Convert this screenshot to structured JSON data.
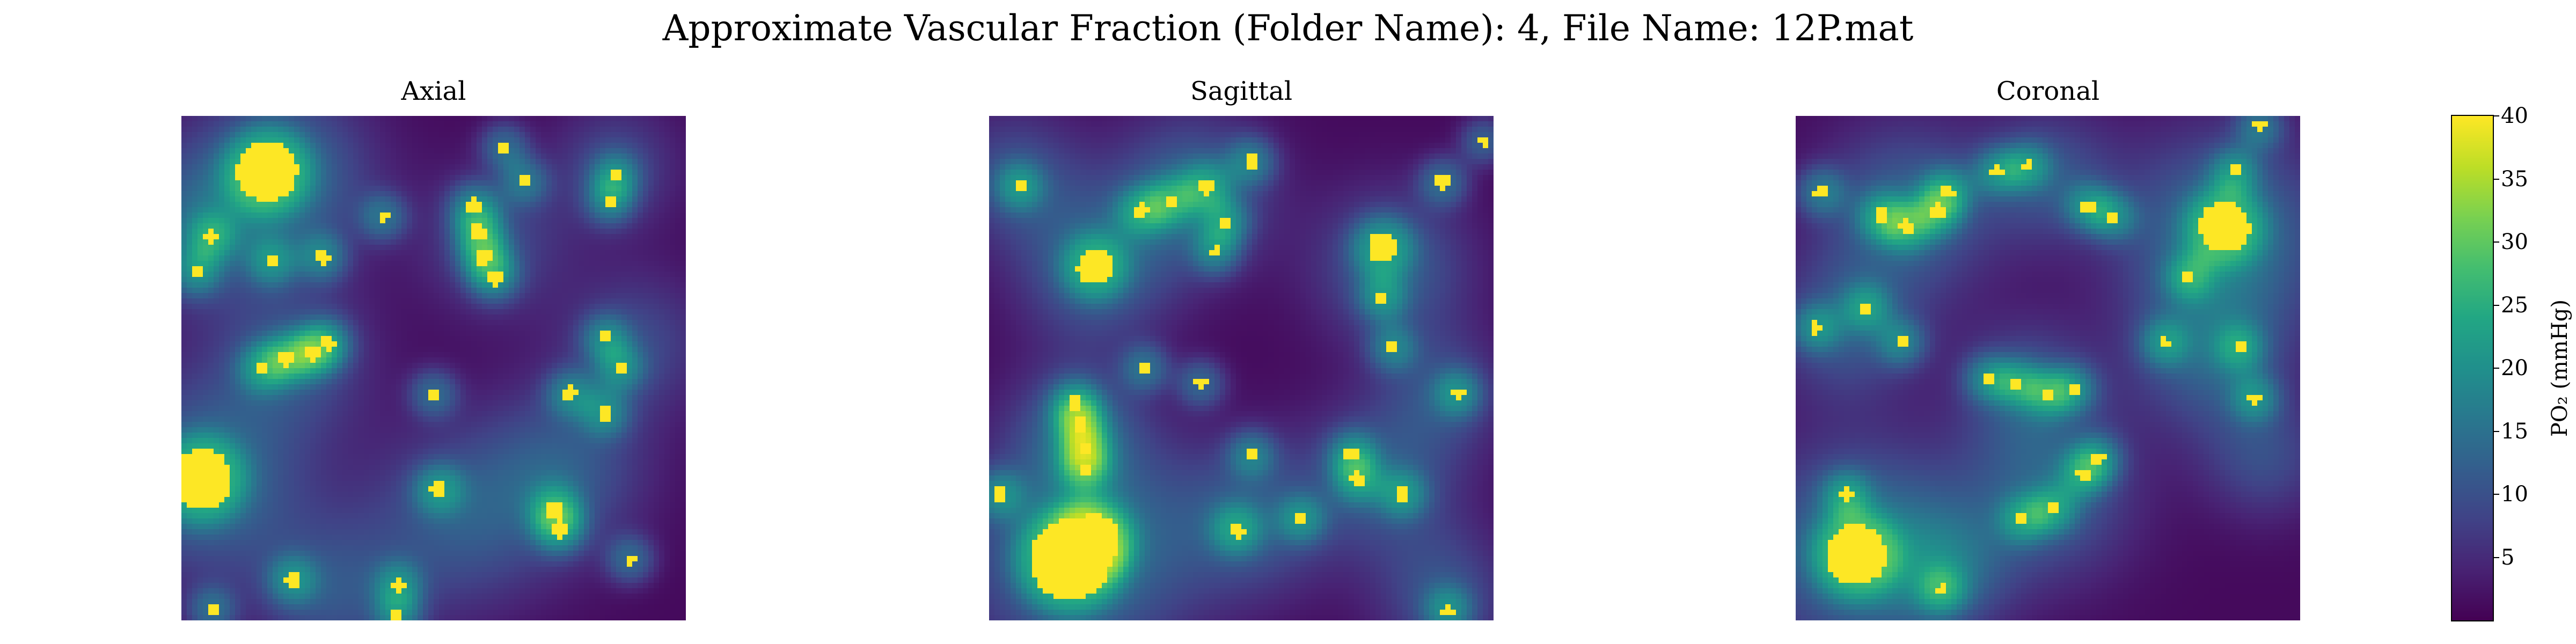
{
  "figure": {
    "suptitle": "Approximate Vascular Fraction (Folder Name): 4, File Name: 12P.mat"
  },
  "chart_data": {
    "type": "heatmap",
    "colormap": "viridis",
    "value_range": [
      0,
      40
    ],
    "panels": [
      {
        "title": "Axial",
        "vessels": [
          {
            "x": 0.17,
            "y": 0.11,
            "r": 0.06,
            "level": 48
          },
          {
            "x": 0.04,
            "y": 0.72,
            "r": 0.06,
            "level": 48
          },
          {
            "x": 0.58,
            "y": 0.18,
            "r": 0.016,
            "level": 46
          },
          {
            "x": 0.59,
            "y": 0.23,
            "r": 0.016,
            "level": 46
          },
          {
            "x": 0.6,
            "y": 0.28,
            "r": 0.016,
            "level": 46
          },
          {
            "x": 0.62,
            "y": 0.32,
            "r": 0.016,
            "level": 46
          },
          {
            "x": 0.16,
            "y": 0.5,
            "r": 0.015,
            "level": 44
          },
          {
            "x": 0.21,
            "y": 0.48,
            "r": 0.015,
            "level": 44
          },
          {
            "x": 0.26,
            "y": 0.47,
            "r": 0.015,
            "level": 44
          },
          {
            "x": 0.29,
            "y": 0.45,
            "r": 0.015,
            "level": 44
          },
          {
            "x": 0.18,
            "y": 0.29,
            "r": 0.013,
            "level": 44
          },
          {
            "x": 0.28,
            "y": 0.28,
            "r": 0.013,
            "level": 44
          },
          {
            "x": 0.4,
            "y": 0.2,
            "r": 0.012,
            "level": 44
          },
          {
            "x": 0.74,
            "y": 0.78,
            "r": 0.018,
            "level": 46
          },
          {
            "x": 0.75,
            "y": 0.82,
            "r": 0.018,
            "level": 46
          },
          {
            "x": 0.51,
            "y": 0.74,
            "r": 0.016,
            "level": 46
          },
          {
            "x": 0.77,
            "y": 0.55,
            "r": 0.013,
            "level": 44
          },
          {
            "x": 0.84,
            "y": 0.59,
            "r": 0.013,
            "level": 44
          },
          {
            "x": 0.84,
            "y": 0.44,
            "r": 0.012,
            "level": 44
          },
          {
            "x": 0.87,
            "y": 0.5,
            "r": 0.012,
            "level": 44
          },
          {
            "x": 0.86,
            "y": 0.12,
            "r": 0.012,
            "level": 44
          },
          {
            "x": 0.85,
            "y": 0.17,
            "r": 0.012,
            "level": 44
          },
          {
            "x": 0.64,
            "y": 0.06,
            "r": 0.012,
            "level": 44
          },
          {
            "x": 0.68,
            "y": 0.13,
            "r": 0.012,
            "level": 44
          },
          {
            "x": 0.22,
            "y": 0.92,
            "r": 0.014,
            "level": 46
          },
          {
            "x": 0.43,
            "y": 0.93,
            "r": 0.013,
            "level": 44
          },
          {
            "x": 0.06,
            "y": 0.24,
            "r": 0.013,
            "level": 44
          },
          {
            "x": 0.03,
            "y": 0.31,
            "r": 0.012,
            "level": 44
          },
          {
            "x": 0.5,
            "y": 0.55,
            "r": 0.012,
            "level": 44
          },
          {
            "x": 0.89,
            "y": 0.88,
            "r": 0.012,
            "level": 44
          },
          {
            "x": 0.06,
            "y": 0.98,
            "r": 0.012,
            "level": 44
          },
          {
            "x": 0.43,
            "y": 0.99,
            "r": 0.012,
            "level": 44
          }
        ],
        "diffuse": [
          {
            "x": 0.2,
            "y": 0.12,
            "r": 0.17,
            "level": 14
          },
          {
            "x": 0.05,
            "y": 0.72,
            "r": 0.19,
            "level": 14
          },
          {
            "x": 0.02,
            "y": 0.22,
            "r": 0.15,
            "level": 10
          },
          {
            "x": 0.55,
            "y": 0.8,
            "r": 0.18,
            "level": 10
          },
          {
            "x": 0.76,
            "y": 0.7,
            "r": 0.16,
            "level": 10
          },
          {
            "x": 0.62,
            "y": 0.25,
            "r": 0.14,
            "level": 8
          },
          {
            "x": 0.22,
            "y": 0.48,
            "r": 0.15,
            "level": 9
          },
          {
            "x": 0.9,
            "y": 0.45,
            "r": 0.14,
            "level": 8
          },
          {
            "x": 0.3,
            "y": 0.95,
            "r": 0.15,
            "level": 9
          },
          {
            "x": 0.86,
            "y": 0.1,
            "r": 0.12,
            "level": 8
          }
        ]
      },
      {
        "title": "Sagittal",
        "vessels": [
          {
            "x": 0.16,
            "y": 0.88,
            "r": 0.08,
            "level": 50
          },
          {
            "x": 0.21,
            "y": 0.84,
            "r": 0.05,
            "level": 48
          },
          {
            "x": 0.21,
            "y": 0.3,
            "r": 0.035,
            "level": 48
          },
          {
            "x": 0.78,
            "y": 0.26,
            "r": 0.03,
            "level": 48
          },
          {
            "x": 0.17,
            "y": 0.57,
            "r": 0.014,
            "level": 46
          },
          {
            "x": 0.18,
            "y": 0.61,
            "r": 0.014,
            "level": 46
          },
          {
            "x": 0.19,
            "y": 0.66,
            "r": 0.014,
            "level": 46
          },
          {
            "x": 0.19,
            "y": 0.7,
            "r": 0.014,
            "level": 46
          },
          {
            "x": 0.3,
            "y": 0.19,
            "r": 0.015,
            "level": 44
          },
          {
            "x": 0.36,
            "y": 0.17,
            "r": 0.015,
            "level": 44
          },
          {
            "x": 0.43,
            "y": 0.14,
            "r": 0.015,
            "level": 44
          },
          {
            "x": 0.52,
            "y": 0.09,
            "r": 0.014,
            "level": 44
          },
          {
            "x": 0.47,
            "y": 0.21,
            "r": 0.012,
            "level": 44
          },
          {
            "x": 0.45,
            "y": 0.27,
            "r": 0.012,
            "level": 44
          },
          {
            "x": 0.72,
            "y": 0.67,
            "r": 0.014,
            "level": 46
          },
          {
            "x": 0.73,
            "y": 0.72,
            "r": 0.014,
            "level": 46
          },
          {
            "x": 0.49,
            "y": 0.82,
            "r": 0.016,
            "level": 46
          },
          {
            "x": 0.82,
            "y": 0.75,
            "r": 0.014,
            "level": 44
          },
          {
            "x": 0.9,
            "y": 0.13,
            "r": 0.014,
            "level": 44
          },
          {
            "x": 0.78,
            "y": 0.36,
            "r": 0.012,
            "level": 44
          },
          {
            "x": 0.8,
            "y": 0.46,
            "r": 0.012,
            "level": 44
          },
          {
            "x": 0.93,
            "y": 0.55,
            "r": 0.012,
            "level": 44
          },
          {
            "x": 0.31,
            "y": 0.5,
            "r": 0.012,
            "level": 44
          },
          {
            "x": 0.42,
            "y": 0.53,
            "r": 0.012,
            "level": 44
          },
          {
            "x": 0.02,
            "y": 0.75,
            "r": 0.014,
            "level": 44
          },
          {
            "x": 0.06,
            "y": 0.14,
            "r": 0.012,
            "level": 44
          },
          {
            "x": 0.52,
            "y": 0.67,
            "r": 0.012,
            "level": 44
          },
          {
            "x": 0.62,
            "y": 0.8,
            "r": 0.012,
            "level": 44
          },
          {
            "x": 0.91,
            "y": 0.98,
            "r": 0.012,
            "level": 44
          },
          {
            "x": 0.98,
            "y": 0.05,
            "r": 0.01,
            "level": 44
          }
        ],
        "diffuse": [
          {
            "x": 0.18,
            "y": 0.86,
            "r": 0.22,
            "level": 16
          },
          {
            "x": 0.21,
            "y": 0.3,
            "r": 0.15,
            "level": 12
          },
          {
            "x": 0.4,
            "y": 0.15,
            "r": 0.15,
            "level": 12
          },
          {
            "x": 0.8,
            "y": 0.3,
            "r": 0.15,
            "level": 11
          },
          {
            "x": 0.78,
            "y": 0.72,
            "r": 0.15,
            "level": 10
          },
          {
            "x": 0.05,
            "y": 0.12,
            "r": 0.13,
            "level": 9
          },
          {
            "x": 0.52,
            "y": 0.8,
            "r": 0.15,
            "level": 10
          },
          {
            "x": 0.9,
            "y": 0.55,
            "r": 0.12,
            "level": 8
          },
          {
            "x": 0.18,
            "y": 0.62,
            "r": 0.12,
            "level": 10
          },
          {
            "x": 0.9,
            "y": 0.95,
            "r": 0.13,
            "level": 9
          }
        ]
      },
      {
        "title": "Coronal",
        "vessels": [
          {
            "x": 0.12,
            "y": 0.87,
            "r": 0.06,
            "level": 50
          },
          {
            "x": 0.85,
            "y": 0.22,
            "r": 0.05,
            "level": 50
          },
          {
            "x": 0.17,
            "y": 0.2,
            "r": 0.015,
            "level": 44
          },
          {
            "x": 0.22,
            "y": 0.22,
            "r": 0.015,
            "level": 44
          },
          {
            "x": 0.28,
            "y": 0.19,
            "r": 0.015,
            "level": 44
          },
          {
            "x": 0.3,
            "y": 0.15,
            "r": 0.015,
            "level": 44
          },
          {
            "x": 0.05,
            "y": 0.15,
            "r": 0.014,
            "level": 44
          },
          {
            "x": 0.4,
            "y": 0.11,
            "r": 0.012,
            "level": 44
          },
          {
            "x": 0.46,
            "y": 0.1,
            "r": 0.012,
            "level": 44
          },
          {
            "x": 0.58,
            "y": 0.18,
            "r": 0.013,
            "level": 44
          },
          {
            "x": 0.63,
            "y": 0.2,
            "r": 0.013,
            "level": 44
          },
          {
            "x": 0.87,
            "y": 0.11,
            "r": 0.012,
            "level": 44
          },
          {
            "x": 0.92,
            "y": 0.02,
            "r": 0.012,
            "level": 44
          },
          {
            "x": 0.38,
            "y": 0.52,
            "r": 0.012,
            "level": 44
          },
          {
            "x": 0.44,
            "y": 0.53,
            "r": 0.012,
            "level": 44
          },
          {
            "x": 0.5,
            "y": 0.55,
            "r": 0.012,
            "level": 44
          },
          {
            "x": 0.55,
            "y": 0.54,
            "r": 0.012,
            "level": 44
          },
          {
            "x": 0.14,
            "y": 0.38,
            "r": 0.012,
            "level": 44
          },
          {
            "x": 0.21,
            "y": 0.45,
            "r": 0.012,
            "level": 44
          },
          {
            "x": 0.04,
            "y": 0.42,
            "r": 0.012,
            "level": 44
          },
          {
            "x": 0.1,
            "y": 0.75,
            "r": 0.012,
            "level": 44
          },
          {
            "x": 0.45,
            "y": 0.8,
            "r": 0.013,
            "level": 44
          },
          {
            "x": 0.51,
            "y": 0.78,
            "r": 0.013,
            "level": 44
          },
          {
            "x": 0.57,
            "y": 0.71,
            "r": 0.013,
            "level": 44
          },
          {
            "x": 0.6,
            "y": 0.68,
            "r": 0.013,
            "level": 44
          },
          {
            "x": 0.78,
            "y": 0.32,
            "r": 0.012,
            "level": 44
          },
          {
            "x": 0.73,
            "y": 0.45,
            "r": 0.012,
            "level": 44
          },
          {
            "x": 0.88,
            "y": 0.46,
            "r": 0.012,
            "level": 44
          },
          {
            "x": 0.91,
            "y": 0.56,
            "r": 0.012,
            "level": 44
          },
          {
            "x": 0.29,
            "y": 0.94,
            "r": 0.012,
            "level": 44
          }
        ],
        "diffuse": [
          {
            "x": 0.13,
            "y": 0.86,
            "r": 0.2,
            "level": 16
          },
          {
            "x": 0.85,
            "y": 0.24,
            "r": 0.2,
            "level": 15
          },
          {
            "x": 0.22,
            "y": 0.19,
            "r": 0.17,
            "level": 12
          },
          {
            "x": 0.5,
            "y": 0.12,
            "r": 0.13,
            "level": 9
          },
          {
            "x": 0.5,
            "y": 0.75,
            "r": 0.17,
            "level": 11
          },
          {
            "x": 0.46,
            "y": 0.54,
            "r": 0.13,
            "level": 9
          },
          {
            "x": 0.1,
            "y": 0.42,
            "r": 0.14,
            "level": 10
          },
          {
            "x": 0.82,
            "y": 0.48,
            "r": 0.15,
            "level": 10
          },
          {
            "x": 0.93,
            "y": 0.68,
            "r": 0.12,
            "level": 8
          },
          {
            "x": 0.3,
            "y": 0.9,
            "r": 0.12,
            "level": 9
          }
        ]
      }
    ],
    "colorbar": {
      "label": "PO₂ (mmHg)",
      "ticks": [
        "5",
        "10",
        "15",
        "20",
        "25",
        "30",
        "35",
        "40"
      ],
      "tick_values": [
        5,
        10,
        15,
        20,
        25,
        30,
        35,
        40
      ],
      "min": 0,
      "max": 40
    }
  }
}
